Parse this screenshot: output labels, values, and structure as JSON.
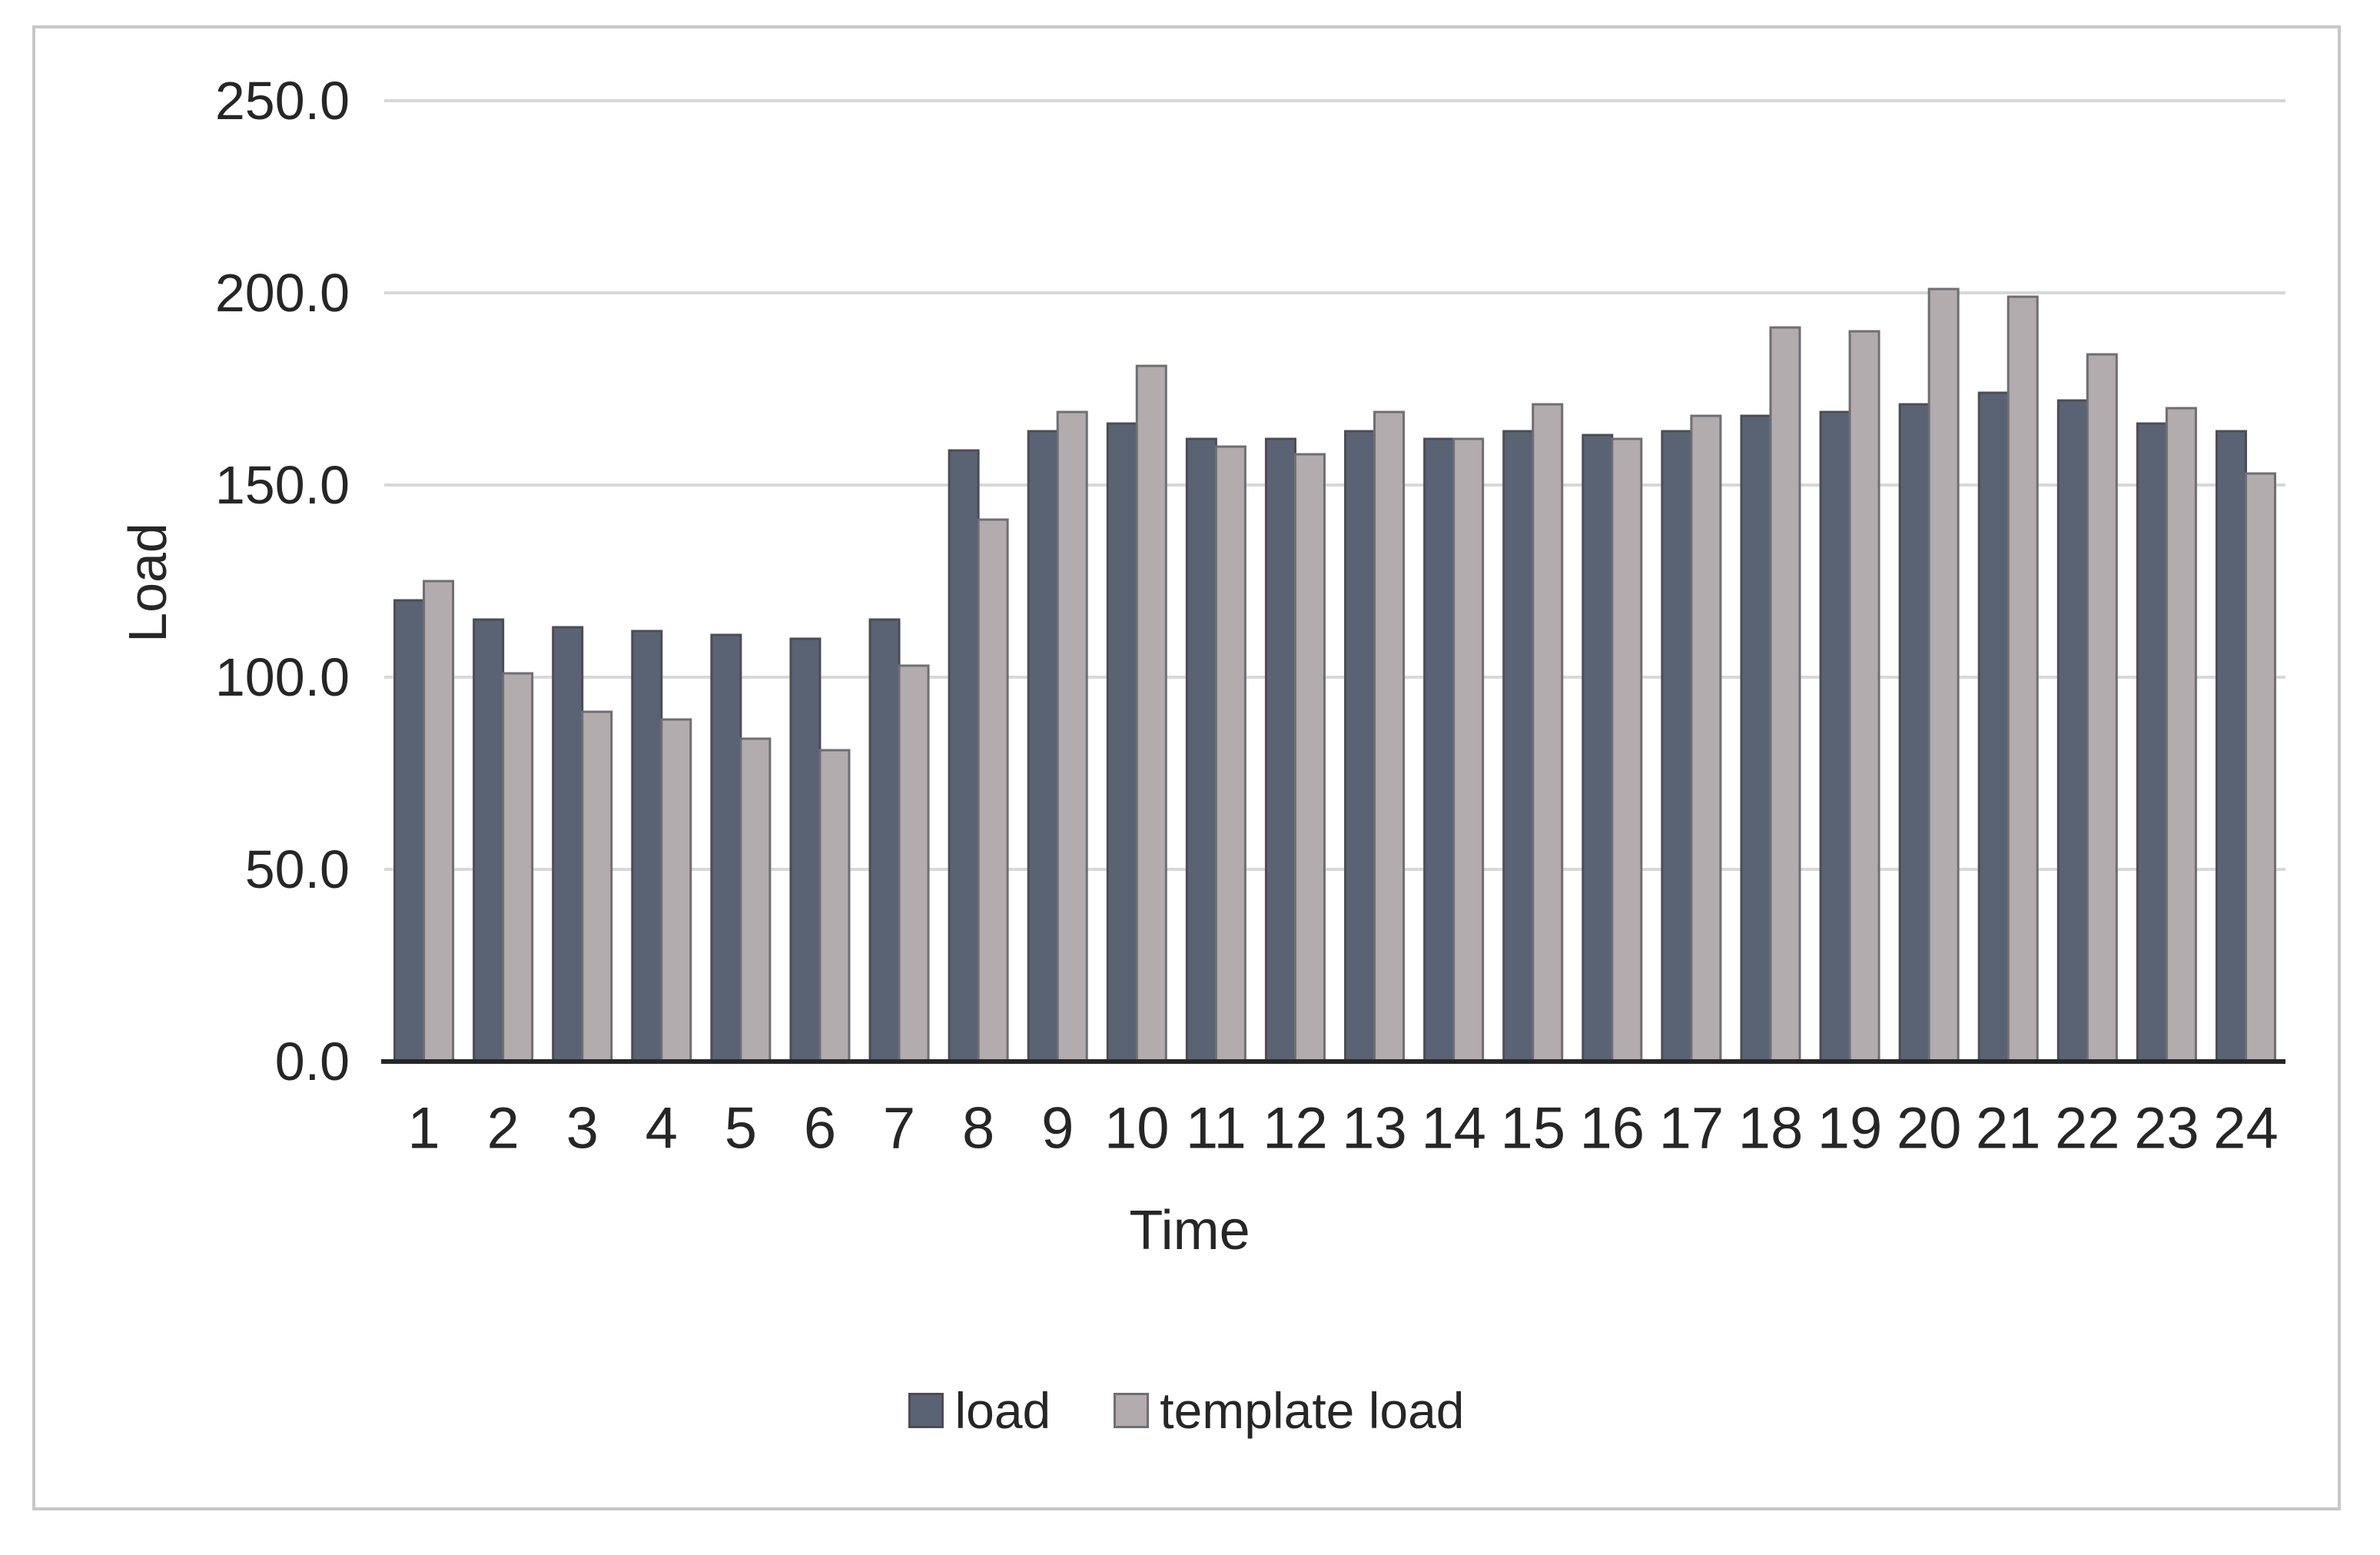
{
  "figure": {
    "background": "#ffffff",
    "border_color": "#c7c7c7"
  },
  "chart_data": {
    "type": "bar",
    "title": "",
    "xlabel": "Time",
    "ylabel": "Load",
    "categories": [
      1,
      2,
      3,
      4,
      5,
      6,
      7,
      8,
      9,
      10,
      11,
      12,
      13,
      14,
      15,
      16,
      17,
      18,
      19,
      20,
      21,
      22,
      23,
      24
    ],
    "series": [
      {
        "name": "load",
        "color": "#5a6374",
        "border_color": "#4d4c54",
        "values": [
          120,
          115,
          113,
          112,
          111,
          110,
          115,
          159,
          164,
          166,
          162,
          162,
          164,
          162,
          164,
          163,
          164,
          168,
          169,
          171,
          174,
          172,
          166,
          164
        ]
      },
      {
        "name": "template load",
        "color": "#b2acae",
        "border_color": "#6f6e72",
        "values": [
          125,
          101,
          91,
          89,
          84,
          81,
          103,
          141,
          169,
          181,
          160,
          158,
          169,
          162,
          171,
          162,
          168,
          191,
          190,
          201,
          199,
          184,
          170,
          153
        ]
      }
    ],
    "ylim": [
      0,
      250
    ],
    "y_ticks": [
      0,
      50,
      100,
      150,
      200,
      250
    ],
    "y_tick_labels": [
      "0.0",
      "50.0",
      "100.0",
      "150.0",
      "200.0",
      "250.0"
    ],
    "grid": "horizontal",
    "grid_color": "#d8d8d8",
    "axis_line_color": "#262626",
    "text_color": "#262626",
    "legend_position": "bottom"
  }
}
